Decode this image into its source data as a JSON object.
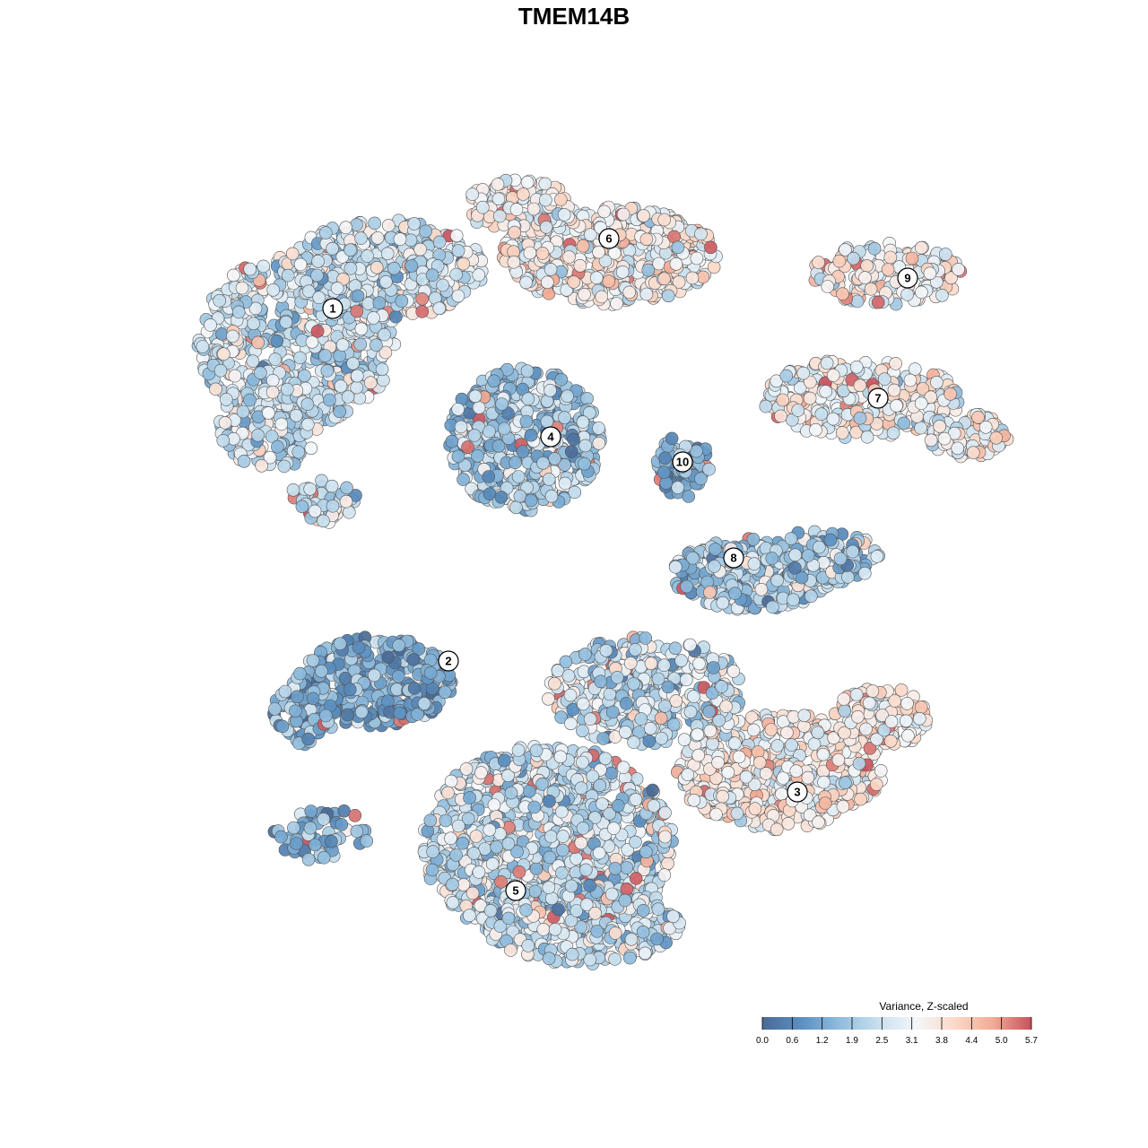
{
  "chart_data": {
    "type": "scatter",
    "title": "TMEM14B",
    "color_variable": "Variance, Z-scaled",
    "color_range": [
      0,
      5.7
    ],
    "colorbar_ticks": [
      "0.0",
      "0.6",
      "1.2",
      "1.9",
      "2.5",
      "3.1",
      "3.8",
      "4.4",
      "5.0",
      "5.7"
    ],
    "palette": [
      "#4a6a96",
      "#5a8fc0",
      "#8fbcdd",
      "#c7dfee",
      "#f4f7fa",
      "#fbd9c8",
      "#f2ab94",
      "#c9505c"
    ],
    "clusters": [
      {
        "id": "1",
        "value_mean": 2.6
      },
      {
        "id": "2",
        "value_mean": 1.3
      },
      {
        "id": "3",
        "value_mean": 3.5
      },
      {
        "id": "4",
        "value_mean": 2.0
      },
      {
        "id": "5",
        "value_mean": 2.5
      },
      {
        "id": "6",
        "value_mean": 3.4
      },
      {
        "id": "7",
        "value_mean": 3.2
      },
      {
        "id": "8",
        "value_mean": 2.0
      },
      {
        "id": "9",
        "value_mean": 3.3
      },
      {
        "id": "10",
        "value_mean": 1.3
      }
    ],
    "legend_position": "bottom-right",
    "grid": false,
    "axes_visible": false
  }
}
